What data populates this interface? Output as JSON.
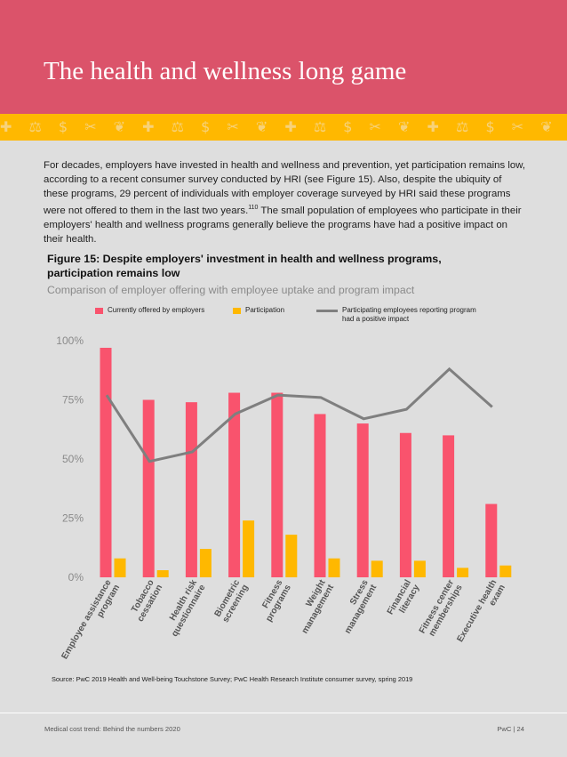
{
  "page": {
    "title": "The health and wellness long game",
    "intro_text": "For decades, employers have invested in health and wellness and prevention, yet participation remains low, according to a recent consumer survey conducted by HRI (see Figure 15). Also, despite the ubiquity of these programs, 29 percent of individuals with employer coverage surveyed by HRI said these programs were not offered to them in the last two years.",
    "footnote_ref": "110",
    "intro_text_end": " The small population of employees who participate in their employers' health and wellness programs generally believe the programs have had a positive impact on their health.",
    "pattern_icons": "✚ ⚖ $ ✂ ❦ ✚ ⚖ $ ✂ ❦ ✚ ⚖ $ ✂ ❦ ✚ ⚖ $ ✂ ❦ ✚ ⚖ $ ✂ ❦ ✚ ⚖ $ ✂ ❦ ✚ ⚖ $",
    "source": "Source: PwC 2019 Health and Well-being Touchstone Survey; PwC Health Research Institute consumer survey, spring 2019",
    "footer_left": "Medical cost trend: Behind the numbers 2020",
    "footer_right": "PwC  |  24"
  },
  "colors": {
    "banner": "#db536a",
    "offered": "#f9536d",
    "participation": "#ffb800",
    "impact": "#7f7f7f"
  },
  "chart_data": {
    "type": "bar",
    "title": "Figure 15: Despite employers' investment in health and wellness programs, participation remains low",
    "subtitle": "Comparison of employer offering with employee uptake and program impact",
    "categories": [
      "Employee assistance program",
      "Tobacco cessation",
      "Health risk questionnaire",
      "Biometric screening",
      "Fitness programs",
      "Weight management",
      "Stress management",
      "Financial literacy",
      "Fitness center memberships",
      "Executive health exam"
    ],
    "category_lines": [
      [
        "Employee assistance",
        "program"
      ],
      [
        "Tobacco",
        "cessation"
      ],
      [
        "Health risk",
        "questionnaire"
      ],
      [
        "Biometric",
        "screening"
      ],
      [
        "Fitness",
        "programs"
      ],
      [
        "Weight",
        "management"
      ],
      [
        "Stress",
        "management"
      ],
      [
        "Financial",
        "literacy"
      ],
      [
        "Fitness center",
        "memberships"
      ],
      [
        "Executive health",
        "exam"
      ]
    ],
    "series": [
      {
        "name": "Currently offered by employers",
        "kind": "bar",
        "values": [
          97,
          75,
          74,
          78,
          78,
          69,
          65,
          61,
          60,
          31
        ]
      },
      {
        "name": "Participation",
        "kind": "bar",
        "values": [
          8,
          3,
          12,
          24,
          18,
          8,
          7,
          7,
          4,
          5
        ]
      },
      {
        "name": "Participating employees reporting program had a positive impact",
        "kind": "line",
        "values": [
          77,
          49,
          53,
          69,
          77,
          76,
          67,
          71,
          88,
          72
        ]
      }
    ],
    "legend": [
      {
        "label": "Currently offered by employers"
      },
      {
        "label": "Participation"
      },
      {
        "label_lines": [
          "Participating employees reporting program",
          "had a positive impact"
        ]
      }
    ],
    "yticks": [
      {
        "value": 0,
        "label": "0%"
      },
      {
        "value": 25,
        "label": "25%"
      },
      {
        "value": 50,
        "label": "50%"
      },
      {
        "value": 75,
        "label": "75%"
      },
      {
        "value": 100,
        "label": "100%"
      }
    ],
    "ylim": [
      0,
      100
    ],
    "grid": false,
    "legend_position": "top"
  }
}
